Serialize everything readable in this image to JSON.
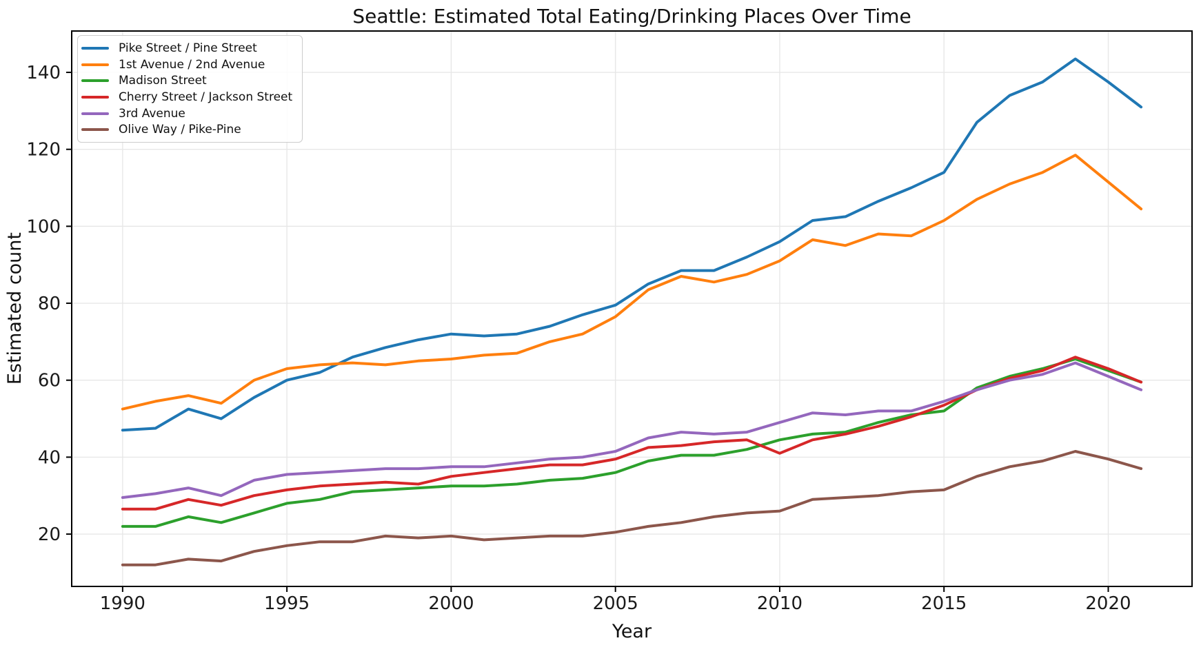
{
  "chart_data": {
    "type": "line",
    "title": "Seattle: Estimated Total Eating/Drinking Places Over Time",
    "xlabel": "Year",
    "ylabel": "Estimated count",
    "x": [
      1990,
      1991,
      1992,
      1993,
      1994,
      1995,
      1996,
      1997,
      1998,
      1999,
      2000,
      2001,
      2002,
      2003,
      2004,
      2005,
      2006,
      2007,
      2008,
      2009,
      2010,
      2011,
      2012,
      2013,
      2014,
      2015,
      2016,
      2017,
      2018,
      2019,
      2020,
      2021
    ],
    "series": [
      {
        "name": "Pike Street / Pine Street",
        "color": "#1f77b4",
        "values": [
          47,
          47.5,
          52.5,
          50,
          55.5,
          60,
          62,
          66,
          68.5,
          70.5,
          72,
          71.5,
          72,
          74,
          77,
          79.5,
          85,
          88.5,
          88.5,
          92,
          96,
          101.5,
          102.5,
          106.5,
          110,
          114,
          127,
          134,
          137.5,
          143.5,
          137.5,
          131
        ]
      },
      {
        "name": "1st Avenue / 2nd Avenue",
        "color": "#ff7f0e",
        "values": [
          52.5,
          54.5,
          56,
          54,
          60,
          63,
          64,
          64.5,
          64,
          65,
          65.5,
          66.5,
          67,
          70,
          72,
          76.5,
          83.5,
          87,
          85.5,
          87.5,
          91,
          96.5,
          95,
          98,
          97.5,
          101.5,
          107,
          111,
          114,
          118.5,
          111.5,
          104.5
        ]
      },
      {
        "name": "Madison Street",
        "color": "#2ca02c",
        "values": [
          22,
          22,
          24.5,
          23,
          25.5,
          28,
          29,
          31,
          31.5,
          32,
          32.5,
          32.5,
          33,
          34,
          34.5,
          36,
          39,
          40.5,
          40.5,
          42,
          44.5,
          46,
          46.5,
          49,
          51,
          52,
          58,
          61,
          63,
          65.5,
          62.5,
          59.5
        ]
      },
      {
        "name": "Cherry Street / Jackson Street",
        "color": "#d62728",
        "values": [
          26.5,
          26.5,
          29,
          27.5,
          30,
          31.5,
          32.5,
          33,
          33.5,
          33,
          35,
          36,
          37,
          38,
          38,
          39.5,
          42.5,
          43,
          44,
          44.5,
          41,
          44.5,
          46,
          48,
          50.5,
          53.5,
          57.5,
          60.5,
          62.5,
          66,
          63,
          59.5
        ]
      },
      {
        "name": "3rd Avenue",
        "color": "#9467bd",
        "values": [
          29.5,
          30.5,
          32,
          30,
          34,
          35.5,
          36,
          36.5,
          37,
          37,
          37.5,
          37.5,
          38.5,
          39.5,
          40,
          41.5,
          45,
          46.5,
          46,
          46.5,
          49,
          51.5,
          51,
          52,
          52,
          54.5,
          57.5,
          60,
          61.5,
          64.5,
          61,
          57.5
        ]
      },
      {
        "name": "Olive Way / Pike-Pine",
        "color": "#8c564b",
        "values": [
          12,
          12,
          13.5,
          13,
          15.5,
          17,
          18,
          18,
          19.5,
          19,
          19.5,
          18.5,
          19,
          19.5,
          19.5,
          20.5,
          22,
          23,
          24.5,
          25.5,
          26,
          29,
          29.5,
          30,
          31,
          31.5,
          35,
          37.5,
          39,
          41.5,
          39.5,
          37
        ]
      }
    ],
    "xticks": [
      1990,
      1995,
      2000,
      2005,
      2010,
      2015,
      2020
    ],
    "yticks": [
      20,
      40,
      60,
      80,
      100,
      120,
      140
    ],
    "xlim": [
      1988.45,
      2022.55
    ],
    "ylim": [
      6.4,
      150.75
    ],
    "grid": true,
    "grid_color": "#e7e7e7",
    "spine_color": "#000000",
    "tick_label_color": "#1a1a1a",
    "legend_position": "upper-left"
  }
}
